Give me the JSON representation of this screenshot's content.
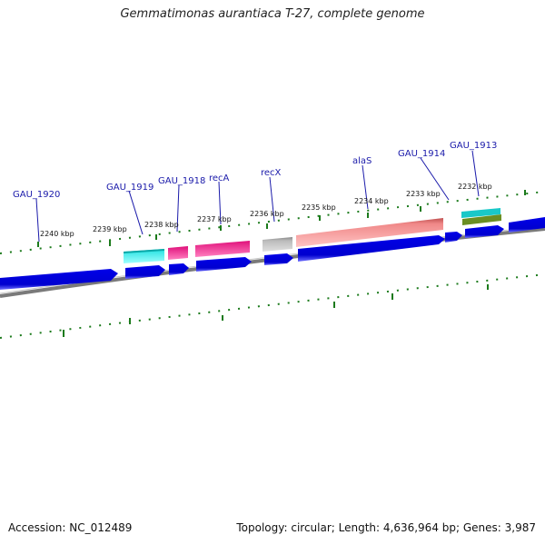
{
  "title": "Gemmatimonas aurantiaca T-27, complete genome",
  "footer": {
    "accession": "Accession: NC_012489",
    "summary": "Topology: circular; Length: 4,636,964 bp; Genes: 3,987"
  },
  "colors": {
    "cds": "#0a0adc",
    "cds_edge": "#8080ff",
    "backbone": "#808080",
    "gc_dots": "#1b7a1b",
    "label": "#1a1aaa",
    "cyan_feature": "#19d3d3",
    "magenta_feature": "#e8107f",
    "salmon_feature": "#f08c8c",
    "grey_feature": "#b8b8b8",
    "olive_feature": "#6b8e23"
  },
  "position_labels": [
    "2240 kbp",
    "2239 kbp",
    "2238 kbp",
    "2237 kbp",
    "2236 kbp",
    "2235 kbp",
    "2234 kbp",
    "2233 kbp",
    "2232 kbp"
  ],
  "gene_labels": [
    "GAU_1920",
    "GAU_1919",
    "GAU_1918",
    "recA",
    "recX",
    "alaS",
    "GAU_1914",
    "GAU_1913"
  ]
}
